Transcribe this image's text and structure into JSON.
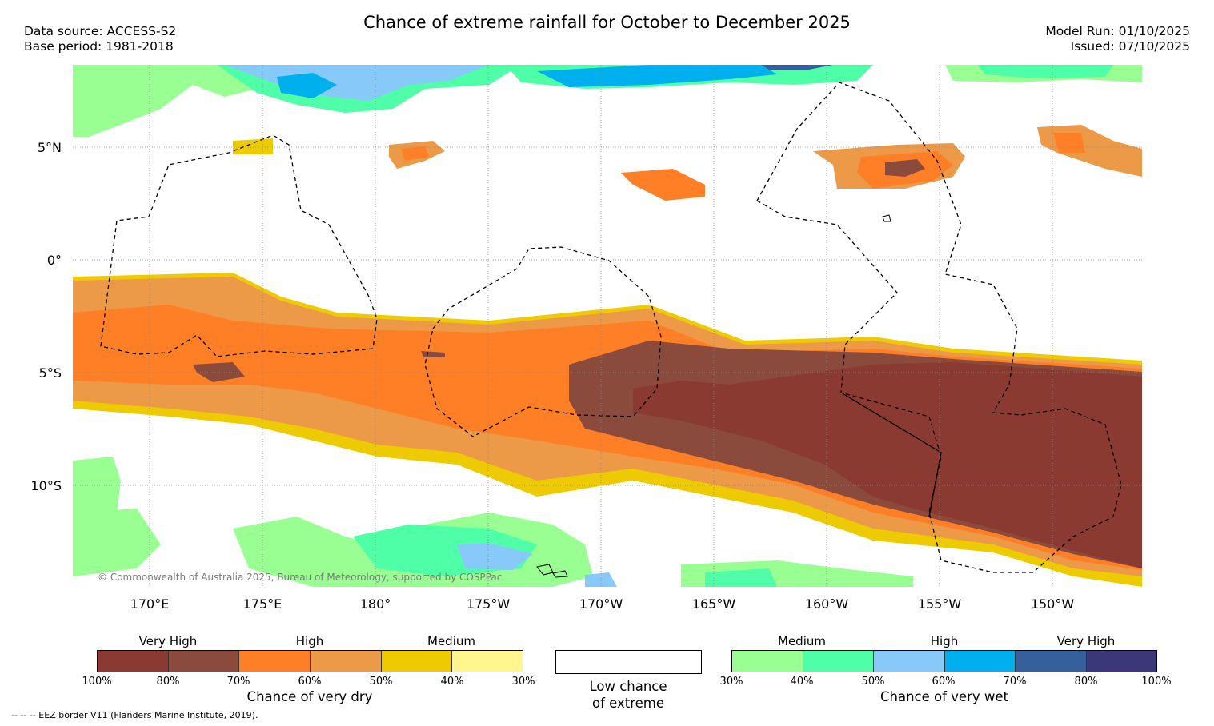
{
  "title": "Chance of extreme rainfall for October to December 2025",
  "meta": {
    "data_source": "Data source: ACCESS-S2",
    "base_period": "Base period: 1981-2018",
    "model_run": "Model Run: 01/10/2025",
    "issued": "Issued: 07/10/2025"
  },
  "map": {
    "lat_labels": [
      "5°N",
      "0°",
      "5°S",
      "10°S"
    ],
    "lon_labels": [
      "170°E",
      "175°E",
      "180°",
      "175°W",
      "170°W",
      "165°W",
      "160°W",
      "155°W",
      "150°W"
    ],
    "copyright": "© Commonwealth of Australia 2025, Bureau of Meteorology, supported by COSPPac"
  },
  "legend_dry": {
    "categories": [
      "Very High",
      "High",
      "Medium"
    ],
    "colors": [
      "#8a3a30",
      "#8a4a3c",
      "#ff7f27",
      "#ec9a48",
      "#eecb00",
      "#fff78e"
    ],
    "ticks": [
      "100%",
      "80%",
      "70%",
      "60%",
      "50%",
      "40%",
      "30%"
    ],
    "caption": "Chance of very dry"
  },
  "legend_low": {
    "caption_line1": "Low chance",
    "caption_line2": "of extreme"
  },
  "legend_wet": {
    "categories": [
      "Medium",
      "High",
      "Very High"
    ],
    "colors": [
      "#99ff93",
      "#4fffa8",
      "#87cafa",
      "#00b0ee",
      "#35609b",
      "#3c3877"
    ],
    "ticks": [
      "30%",
      "40%",
      "50%",
      "60%",
      "70%",
      "80%",
      "100%"
    ],
    "caption": "Chance of very wet"
  },
  "footnote": "-- -- -- EEZ border V11 (Flanders Marine Institute, 2019)."
}
